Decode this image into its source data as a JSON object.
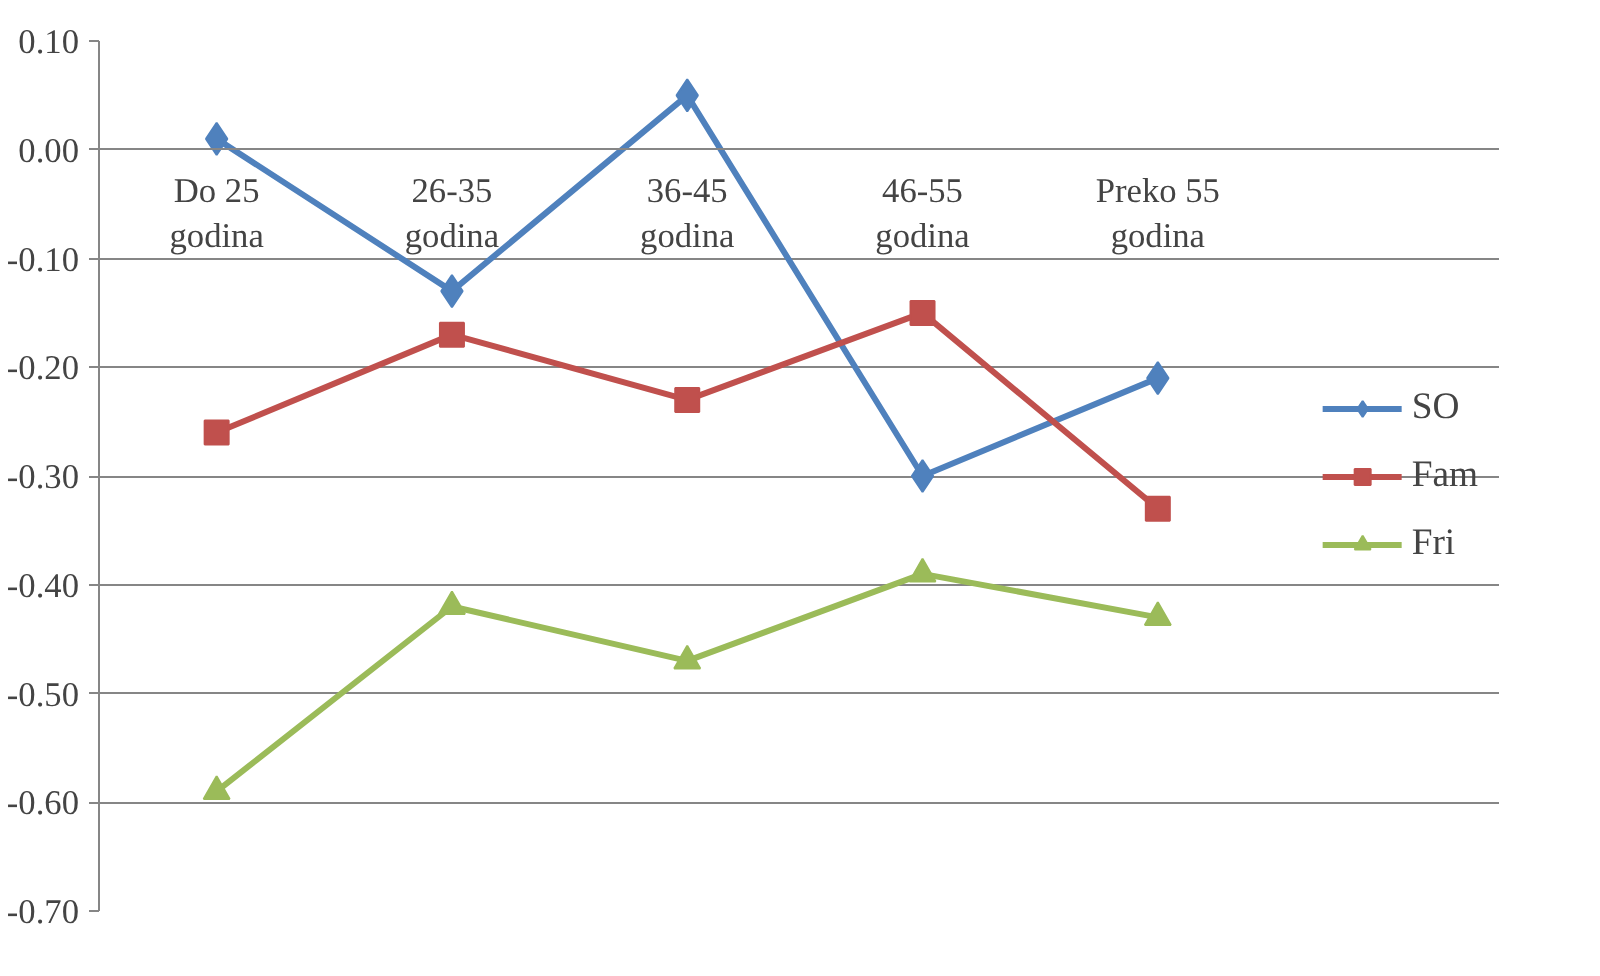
{
  "chart_data": {
    "type": "line",
    "categories": [
      "Do 25 godina",
      "26-35 godina",
      "36-45 godina",
      "46-55 godina",
      "Preko 55 godina"
    ],
    "series": [
      {
        "name": "SO",
        "color": "#4f81bd",
        "marker": "diamond",
        "values": [
          0.01,
          -0.13,
          0.05,
          -0.3,
          -0.21
        ]
      },
      {
        "name": "Fam",
        "color": "#c0504d",
        "marker": "square",
        "values": [
          -0.26,
          -0.17,
          -0.23,
          -0.15,
          -0.33
        ]
      },
      {
        "name": "Fri",
        "color": "#9bbb59",
        "marker": "triangle",
        "values": [
          -0.59,
          -0.42,
          -0.47,
          -0.39,
          -0.43
        ]
      }
    ],
    "ylim": [
      -0.7,
      0.1
    ],
    "yticks": [
      {
        "value": 0.1,
        "label": "0.10"
      },
      {
        "value": 0.0,
        "label": "0.00"
      },
      {
        "value": -0.1,
        "label": "-0.10"
      },
      {
        "value": -0.2,
        "label": "-0.20"
      },
      {
        "value": -0.3,
        "label": "-0.30"
      },
      {
        "value": -0.4,
        "label": "-0.40"
      },
      {
        "value": -0.5,
        "label": "-0.50"
      },
      {
        "value": -0.6,
        "label": "-0.60"
      },
      {
        "value": -0.7,
        "label": "-0.70"
      }
    ],
    "grid": "y",
    "legend": "right"
  }
}
